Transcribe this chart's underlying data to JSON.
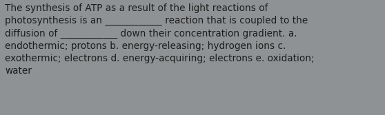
{
  "text": "The synthesis of ATP as a result of the light reactions of\nphotosynthesis is an ____________ reaction that is coupled to the\ndiffusion of ____________ down their concentration gradient. a.\nendothermic; protons b. energy-releasing; hydrogen ions c.\nexothermic; electrons d. energy-acquiring; electrons e. oxidation;\nwater",
  "background_color": "#8f9294",
  "text_color": "#1c1c1c",
  "font_size": 9.8,
  "fig_width": 5.58,
  "fig_height": 1.67,
  "dpi": 100
}
